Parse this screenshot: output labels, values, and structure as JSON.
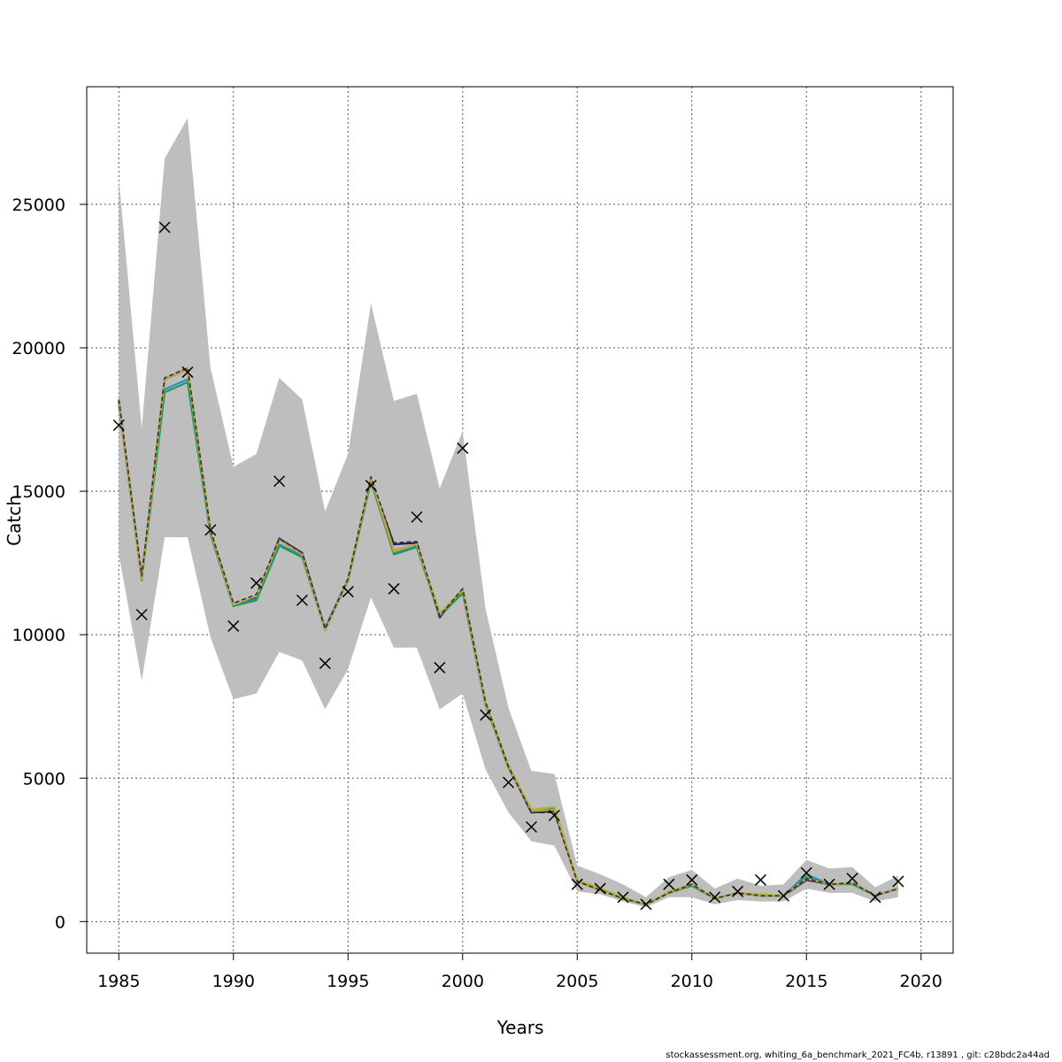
{
  "chart_data": {
    "type": "line",
    "title": "",
    "xlabel": "Years",
    "ylabel": "Catch",
    "xlim": [
      1983.6,
      2021.4
    ],
    "ylim": [
      -1100,
      29100
    ],
    "x_ticks": [
      1985,
      1990,
      1995,
      2000,
      2005,
      2010,
      2015,
      2020
    ],
    "y_ticks": [
      0,
      5000,
      10000,
      15000,
      20000,
      25000
    ],
    "grid": true,
    "legend": "none",
    "x": [
      1985,
      1986,
      1987,
      1988,
      1989,
      1990,
      1991,
      1992,
      1993,
      1994,
      1995,
      1996,
      1997,
      1998,
      1999,
      2000,
      2001,
      2002,
      2003,
      2004,
      2005,
      2006,
      2007,
      2008,
      2009,
      2010,
      2011,
      2012,
      2013,
      2014,
      2015,
      2016,
      2017,
      2018,
      2019
    ],
    "observed": [
      17300,
      10700,
      24200,
      19150,
      13650,
      10300,
      11800,
      15350,
      11200,
      9000,
      11500,
      15200,
      11600,
      14100,
      8850,
      16500,
      7200,
      4850,
      3300,
      3700,
      1300,
      1150,
      850,
      600,
      1300,
      1450,
      850,
      1050,
      1450,
      900,
      1700,
      1300,
      1500,
      850,
      1400
    ],
    "ci_lower": [
      12800,
      8400,
      13400,
      13400,
      9900,
      7750,
      7950,
      9400,
      9100,
      7400,
      8800,
      11300,
      9550,
      9550,
      7400,
      7950,
      5300,
      3800,
      2800,
      2650,
      1050,
      950,
      700,
      500,
      850,
      850,
      600,
      750,
      700,
      700,
      1150,
      1000,
      1000,
      700,
      850
    ],
    "ci_upper": [
      25900,
      17200,
      26600,
      28000,
      19300,
      15850,
      16300,
      18950,
      18200,
      14300,
      16300,
      21550,
      18150,
      18400,
      15100,
      17100,
      10900,
      7450,
      5250,
      5150,
      1950,
      1650,
      1300,
      850,
      1550,
      1800,
      1150,
      1500,
      1250,
      1300,
      2150,
      1850,
      1900,
      1200,
      1600
    ],
    "series": [
      {
        "color": "#1a1a66",
        "values": [
          18150,
          12000,
          18900,
          19250,
          13600,
          11050,
          11300,
          13350,
          12850,
          10200,
          11900,
          15400,
          13150,
          13200,
          10600,
          11600,
          7600,
          5400,
          3800,
          3850,
          1400,
          1100,
          800,
          600,
          1000,
          1300,
          800,
          1000,
          900,
          900,
          1450,
          1300,
          1350,
          900,
          1150
        ]
      },
      {
        "color": "#2a8fbf",
        "values": [
          18000,
          11950,
          18550,
          18900,
          13500,
          11000,
          11250,
          13150,
          12750,
          10250,
          11950,
          15400,
          12850,
          13100,
          10700,
          11500,
          7600,
          5400,
          3850,
          3900,
          1400,
          1100,
          800,
          600,
          1000,
          1250,
          800,
          1000,
          900,
          900,
          1650,
          1300,
          1350,
          900,
          1150
        ]
      },
      {
        "color": "#1e9a5a",
        "values": [
          18050,
          11900,
          18450,
          18800,
          13500,
          11000,
          11200,
          13100,
          12700,
          10150,
          11900,
          15350,
          12800,
          13050,
          10650,
          11450,
          7550,
          5350,
          3900,
          3950,
          1400,
          1100,
          800,
          600,
          1000,
          1250,
          800,
          1000,
          900,
          900,
          1550,
          1300,
          1300,
          900,
          1150
        ]
      },
      {
        "color": "#a8b82a",
        "values": [
          18100,
          11950,
          18900,
          19300,
          13650,
          11050,
          11350,
          13300,
          12800,
          10150,
          11950,
          15500,
          12950,
          13150,
          10750,
          11550,
          7650,
          5450,
          3900,
          4000,
          1450,
          1150,
          850,
          600,
          1050,
          1300,
          800,
          1000,
          950,
          900,
          1500,
          1300,
          1350,
          900,
          1150
        ]
      },
      {
        "color": "#c9a04a",
        "values": [
          18100,
          12000,
          18900,
          19250,
          13600,
          11050,
          11350,
          13300,
          12800,
          10150,
          11950,
          15450,
          12900,
          13150,
          10700,
          11600,
          7600,
          5400,
          3850,
          3900,
          1400,
          1100,
          800,
          600,
          1000,
          1300,
          800,
          1000,
          900,
          900,
          1500,
          1300,
          1350,
          900,
          1150
        ]
      },
      {
        "color": "#333333",
        "dashed": true,
        "values": [
          18200,
          12050,
          18950,
          19300,
          13650,
          11100,
          11400,
          13350,
          12850,
          10200,
          11950,
          15500,
          13200,
          13250,
          10650,
          11600,
          7650,
          5400,
          3800,
          3800,
          1400,
          1100,
          800,
          600,
          1000,
          1300,
          800,
          1000,
          900,
          900,
          1500,
          1300,
          1350,
          900,
          1150
        ]
      }
    ]
  },
  "footer": "stockassessment.org, whiting_6a_benchmark_2021_FC4b, r13891 , git: c28bdc2a44ad"
}
